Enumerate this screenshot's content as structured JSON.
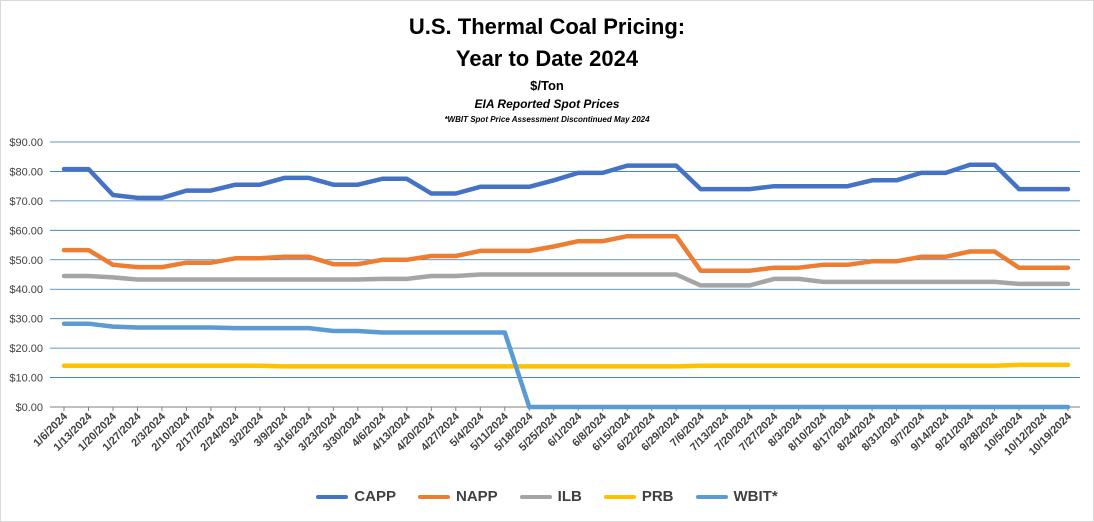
{
  "title_line1": "U.S. Thermal Coal Pricing:",
  "title_line2": "Year to Date 2024",
  "unit": "$/Ton",
  "subtitle": "EIA Reported Spot Prices",
  "note": "*WBIT Spot Price Assessment Discontinued May 2024",
  "chart_data": {
    "type": "line",
    "title": "U.S. Thermal Coal Pricing: Year to Date 2024",
    "ylabel": "",
    "xlabel": "",
    "ylim": [
      0,
      90
    ],
    "yticks": [
      "$0.00",
      "$10.00",
      "$20.00",
      "$30.00",
      "$40.00",
      "$50.00",
      "$60.00",
      "$70.00",
      "$80.00",
      "$90.00"
    ],
    "grid": true,
    "legend_position": "bottom",
    "categories": [
      "1/6/2024",
      "1/13/2024",
      "1/20/2024",
      "1/27/2024",
      "2/3/2024",
      "2/10/2024",
      "2/17/2024",
      "2/24/2024",
      "3/2/2024",
      "3/9/2024",
      "3/16/2024",
      "3/23/2024",
      "3/30/2024",
      "4/6/2024",
      "4/13/2024",
      "4/20/2024",
      "4/27/2024",
      "5/4/2024",
      "5/11/2024",
      "5/18/2024",
      "5/25/2024",
      "6/1/2024",
      "6/8/2024",
      "6/15/2024",
      "6/22/2024",
      "6/29/2024",
      "7/6/2024",
      "7/13/2024",
      "7/20/2024",
      "7/27/2024",
      "8/3/2024",
      "8/10/2024",
      "8/17/2024",
      "8/24/2024",
      "8/31/2024",
      "9/7/2024",
      "9/14/2024",
      "9/21/2024",
      "9/28/2024",
      "10/5/2024",
      "10/12/2024",
      "10/19/2024"
    ],
    "series": [
      {
        "name": "CAPP",
        "color": "#4472c4",
        "values": [
          80.8,
          80.8,
          72.0,
          71.0,
          71.0,
          73.5,
          73.5,
          75.5,
          75.5,
          77.8,
          77.8,
          75.5,
          75.5,
          77.5,
          77.5,
          72.5,
          72.5,
          74.8,
          74.8,
          74.8,
          77.0,
          79.5,
          79.5,
          82.0,
          82.0,
          82.0,
          74.0,
          74.0,
          74.0,
          75.0,
          75.0,
          75.0,
          75.0,
          77.0,
          77.0,
          79.5,
          79.5,
          82.3,
          82.3,
          74.0,
          74.0,
          74.0
        ]
      },
      {
        "name": "NAPP",
        "color": "#ed7d31",
        "values": [
          53.3,
          53.3,
          48.3,
          47.5,
          47.5,
          49.0,
          49.0,
          50.5,
          50.5,
          51.0,
          51.0,
          48.5,
          48.5,
          50.0,
          50.0,
          51.3,
          51.3,
          53.0,
          53.0,
          53.0,
          54.5,
          56.3,
          56.3,
          58.0,
          58.0,
          58.0,
          46.3,
          46.3,
          46.3,
          47.3,
          47.3,
          48.3,
          48.3,
          49.5,
          49.5,
          51.0,
          51.0,
          52.8,
          52.8,
          47.3,
          47.3,
          47.3
        ]
      },
      {
        "name": "ILB",
        "color": "#a5a5a5",
        "values": [
          44.5,
          44.5,
          44.0,
          43.3,
          43.3,
          43.3,
          43.3,
          43.3,
          43.3,
          43.3,
          43.3,
          43.3,
          43.3,
          43.5,
          43.5,
          44.5,
          44.5,
          45.0,
          45.0,
          45.0,
          45.0,
          45.0,
          45.0,
          45.0,
          45.0,
          45.0,
          41.3,
          41.3,
          41.3,
          43.5,
          43.5,
          42.5,
          42.5,
          42.5,
          42.5,
          42.5,
          42.5,
          42.5,
          42.5,
          41.8,
          41.8,
          41.8
        ]
      },
      {
        "name": "PRB",
        "color": "#ffc000",
        "values": [
          14.0,
          14.0,
          14.0,
          14.0,
          14.0,
          14.0,
          14.0,
          14.0,
          14.0,
          13.8,
          13.8,
          13.8,
          13.8,
          13.8,
          13.8,
          13.8,
          13.8,
          13.8,
          13.8,
          13.8,
          13.8,
          13.8,
          13.8,
          13.8,
          13.8,
          13.8,
          14.0,
          14.0,
          14.0,
          14.0,
          14.0,
          14.0,
          14.0,
          14.0,
          14.0,
          14.0,
          14.0,
          14.0,
          14.0,
          14.3,
          14.3,
          14.3
        ]
      },
      {
        "name": "WBIT*",
        "color": "#5b9bd5",
        "values": [
          28.3,
          28.3,
          27.3,
          27.0,
          27.0,
          27.0,
          27.0,
          26.8,
          26.8,
          26.8,
          26.8,
          25.8,
          25.8,
          25.3,
          25.3,
          25.3,
          25.3,
          25.3,
          25.3,
          0,
          0,
          0,
          0,
          0,
          0,
          0,
          0,
          0,
          0,
          0,
          0,
          0,
          0,
          0,
          0,
          0,
          0,
          0,
          0,
          0,
          0,
          0
        ]
      }
    ]
  }
}
